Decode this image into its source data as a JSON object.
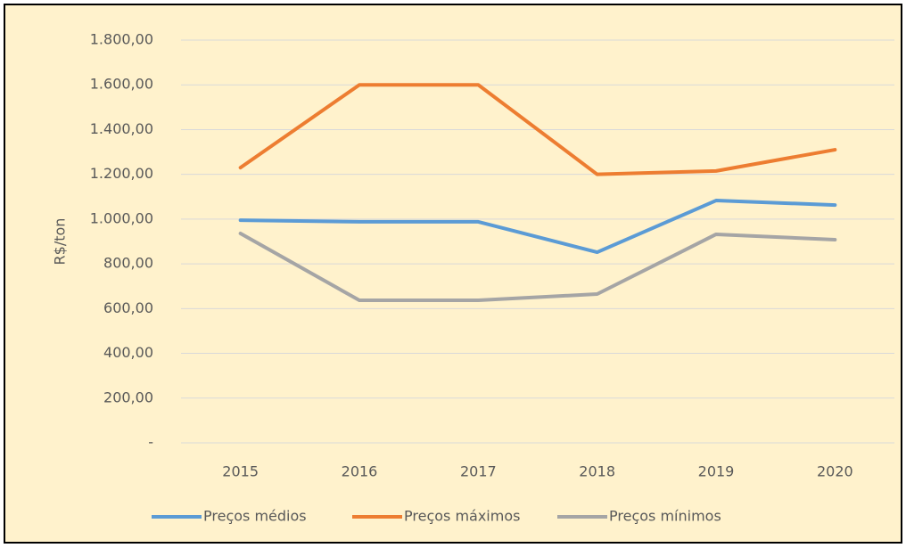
{
  "chart_data": {
    "type": "line",
    "y_label": "R$/ton",
    "categories": [
      "2015",
      "2016",
      "2017",
      "2018",
      "2019",
      "2020"
    ],
    "series": [
      {
        "name": "Preços médios",
        "color": "#5B9BD5",
        "values": [
          995,
          988,
          988,
          852,
          1083,
          1063
        ]
      },
      {
        "name": "Preços máximos",
        "color": "#ED7D31",
        "values": [
          1230,
          1600,
          1600,
          1200,
          1215,
          1310
        ]
      },
      {
        "name": "Preços mínimos",
        "color": "#A5A5A5",
        "values": [
          936,
          637,
          637,
          665,
          932,
          908
        ]
      }
    ],
    "ylim": [
      0,
      1800
    ],
    "yticks": [
      {
        "value": 0,
        "label": "-"
      },
      {
        "value": 200,
        "label": "200,00"
      },
      {
        "value": 400,
        "label": "400,00"
      },
      {
        "value": 600,
        "label": "600,00"
      },
      {
        "value": 800,
        "label": "800,00"
      },
      {
        "value": 1000,
        "label": "1.000,00"
      },
      {
        "value": 1200,
        "label": "1.200,00"
      },
      {
        "value": 1400,
        "label": "1.400,00"
      },
      {
        "value": 1600,
        "label": "1.600,00"
      },
      {
        "value": 1800,
        "label": "1.800,00"
      }
    ],
    "grid": true,
    "legend": "bottom",
    "background": "#FFF2CC"
  }
}
